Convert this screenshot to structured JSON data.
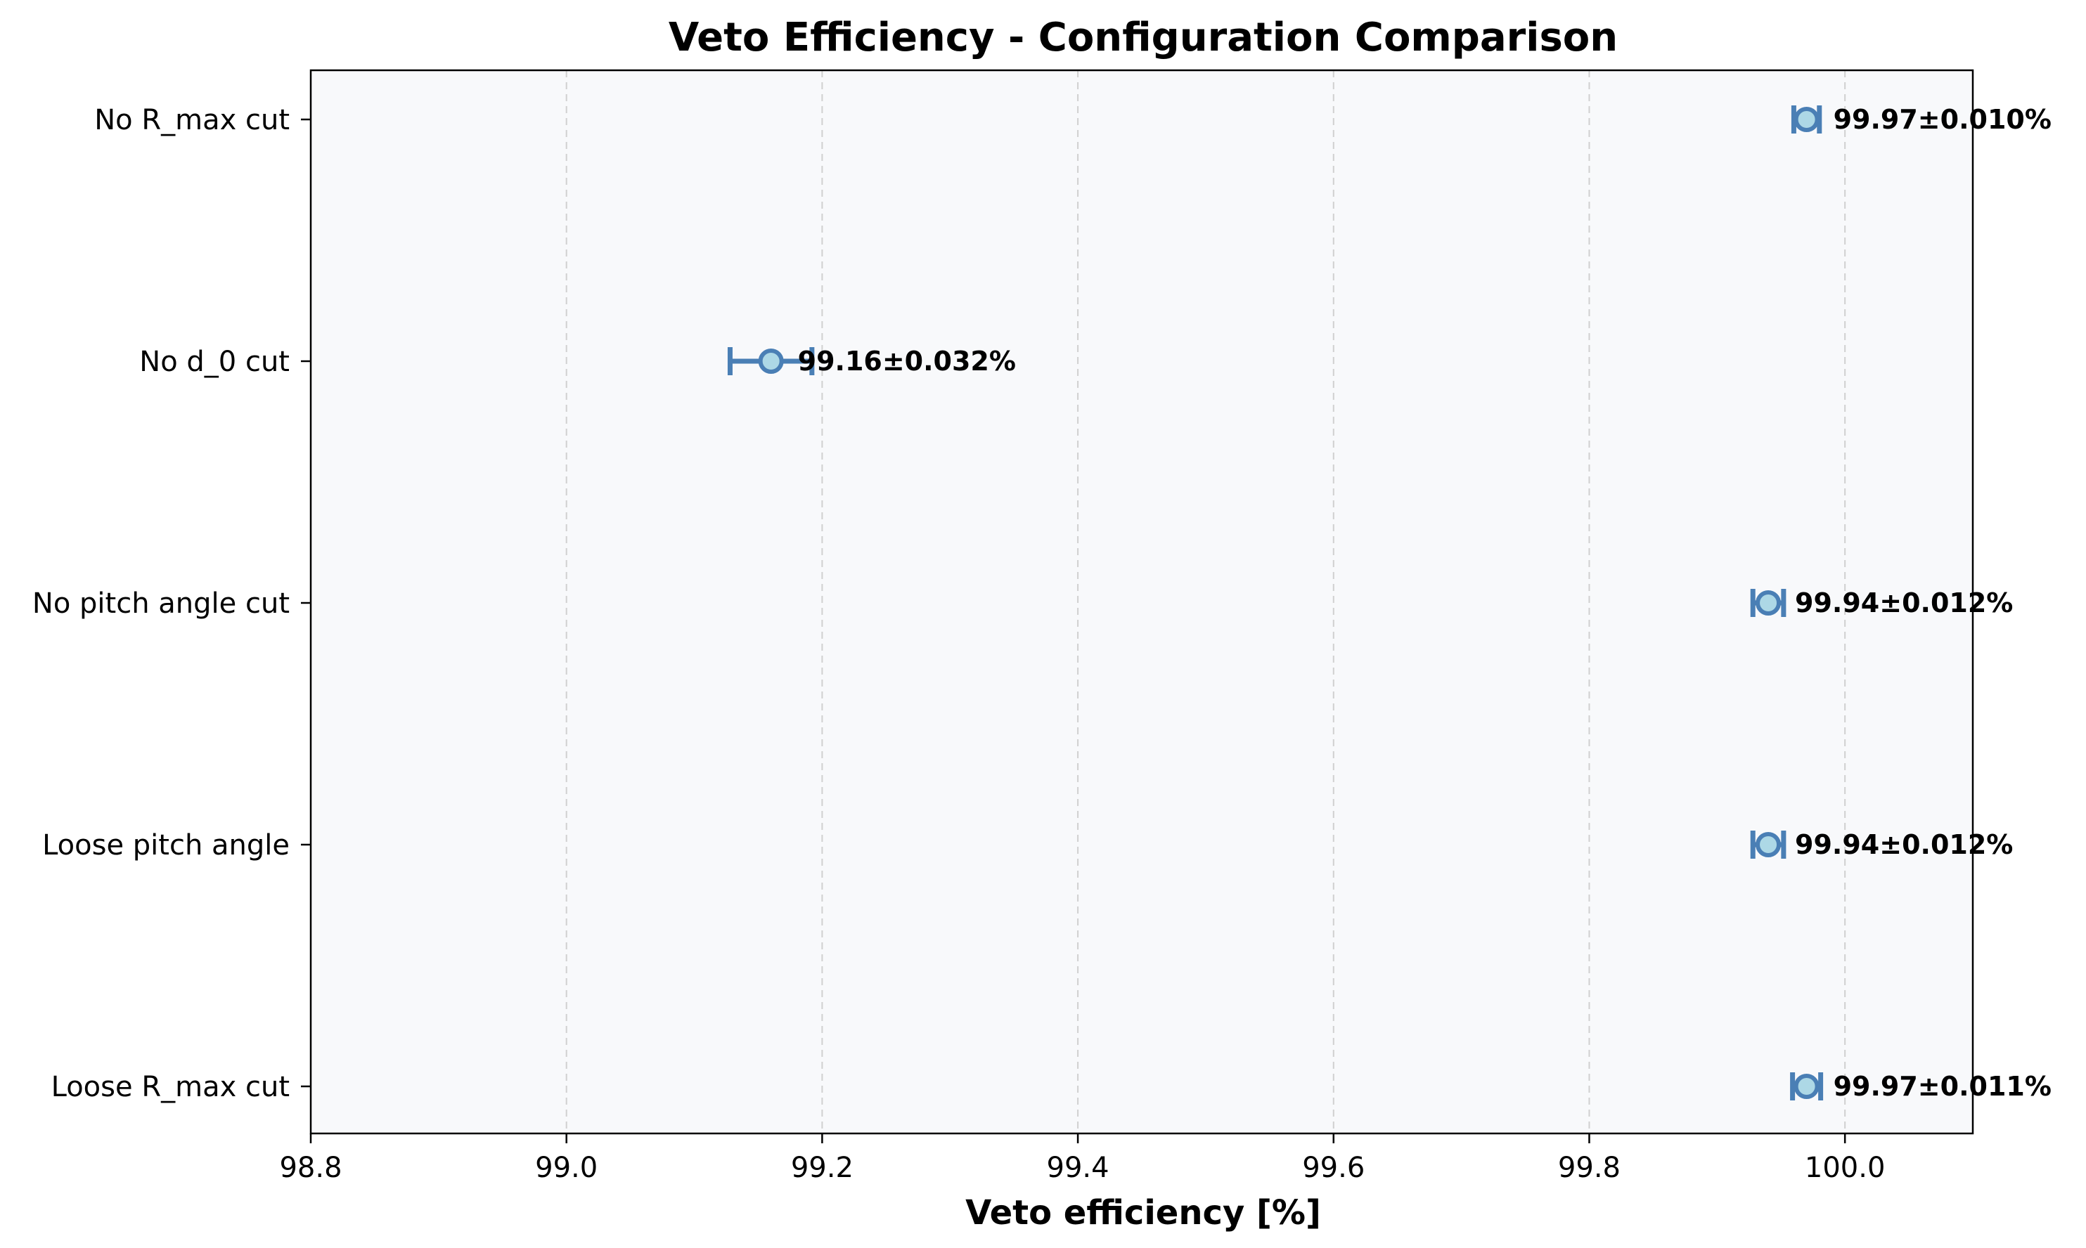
{
  "chart_data": {
    "type": "errorbar-horizontal",
    "title": "Veto Efficiency - Configuration Comparison",
    "xlabel": "Veto efficiency [%]",
    "ylabel": "",
    "xlim": [
      98.8,
      100.1
    ],
    "xticks": [
      98.8,
      99.0,
      99.2,
      99.4,
      99.6,
      99.8,
      100.0
    ],
    "xtick_labels": [
      "98.8",
      "99.0",
      "99.2",
      "99.4",
      "99.6",
      "99.8",
      "100.0"
    ],
    "grid": "x-dashed",
    "categories": [
      "No R_max cut",
      "No d_0 cut",
      "No pitch angle cut",
      "Loose pitch angle",
      "Loose R_max cut"
    ],
    "values": [
      99.97,
      99.16,
      99.94,
      99.94,
      99.97
    ],
    "errors": [
      0.01,
      0.032,
      0.012,
      0.012,
      0.011
    ],
    "labels": [
      "99.97±0.010%",
      "99.16±0.032%",
      "99.94±0.012%",
      "99.94±0.012%",
      "99.97±0.011%"
    ],
    "colors": {
      "marker_edge": "#4a7fb5",
      "marker_face": "#add8e6",
      "errorbar": "#4a7fb5",
      "plot_bg": "#f8f9fb",
      "grid": "#d0d0d0"
    }
  }
}
